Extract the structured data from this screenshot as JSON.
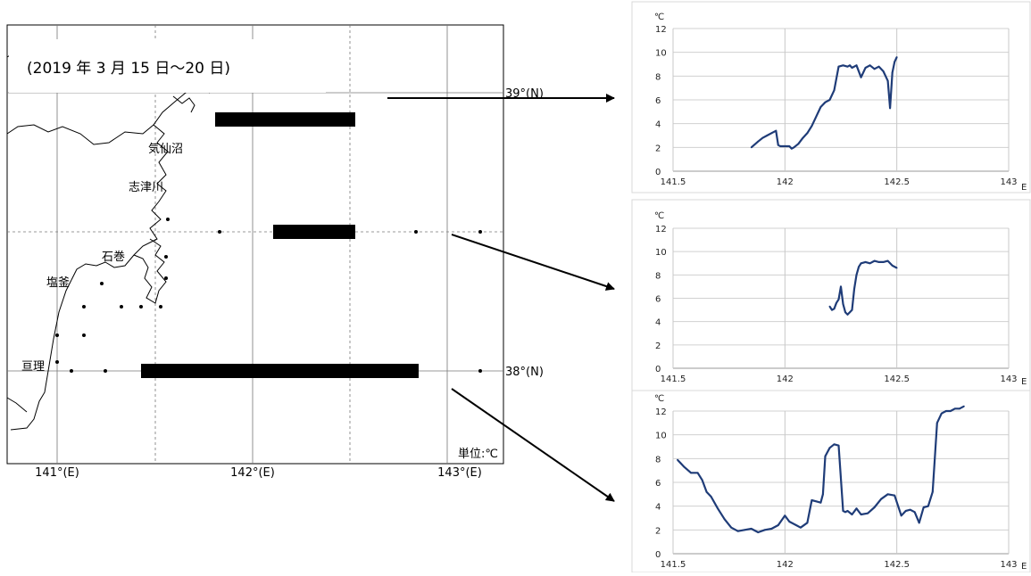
{
  "map": {
    "title": "(2019 年 3 月 15 日〜20 日)",
    "unit_label": "単位:℃",
    "lon_labels": [
      "141°(E)",
      "142°(E)",
      "143°(E)"
    ],
    "lat_labels": [
      "39°(N)",
      "38°(N)"
    ],
    "places": [
      "気仙沼",
      "志津川",
      "石巻",
      "塩釜",
      "亘理"
    ]
  },
  "chart_data": [
    {
      "type": "line",
      "unit": "℃",
      "x_axis_suffix": "E",
      "xlim": [
        141.5,
        143
      ],
      "x_ticks": [
        "141.5",
        "142",
        "142.5",
        "143"
      ],
      "ylim": [
        0,
        12
      ],
      "y_ticks": [
        "0",
        "2",
        "4",
        "6",
        "8",
        "10",
        "12"
      ],
      "grid": true,
      "color": "#1f3c78",
      "series": [
        {
          "x": [
            141.85,
            141.88,
            141.9,
            141.92,
            141.94,
            141.96,
            141.97,
            141.98,
            142.0,
            142.02,
            142.03,
            142.04,
            142.06,
            142.08,
            142.1,
            142.12,
            142.14,
            142.16,
            142.18,
            142.2,
            142.22,
            142.24,
            142.26,
            142.28,
            142.29,
            142.3,
            142.32,
            142.34,
            142.36,
            142.38,
            142.4,
            142.42,
            142.44,
            142.46,
            142.47,
            142.48,
            142.49,
            142.5
          ],
          "y": [
            2.0,
            2.5,
            2.8,
            3.0,
            3.2,
            3.4,
            2.2,
            2.1,
            2.1,
            2.1,
            1.9,
            2.0,
            2.3,
            2.8,
            3.2,
            3.8,
            4.6,
            5.4,
            5.8,
            6.0,
            6.8,
            8.8,
            8.9,
            8.8,
            8.9,
            8.7,
            8.9,
            7.9,
            8.7,
            8.9,
            8.6,
            8.8,
            8.4,
            7.6,
            5.3,
            8.3,
            9.2,
            9.6
          ]
        }
      ]
    },
    {
      "type": "line",
      "unit": "℃",
      "x_axis_suffix": "E",
      "xlim": [
        141.5,
        143
      ],
      "x_ticks": [
        "141.5",
        "142",
        "142.5",
        "143"
      ],
      "ylim": [
        0,
        12
      ],
      "y_ticks": [
        "0",
        "2",
        "4",
        "6",
        "8",
        "10",
        "12"
      ],
      "grid": true,
      "color": "#1f3c78",
      "series": [
        {
          "x": [
            142.2,
            142.21,
            142.22,
            142.23,
            142.24,
            142.25,
            142.26,
            142.27,
            142.28,
            142.29,
            142.3,
            142.31,
            142.32,
            142.33,
            142.34,
            142.36,
            142.38,
            142.4,
            142.42,
            142.44,
            142.46,
            142.48,
            142.5
          ],
          "y": [
            5.3,
            5.0,
            5.1,
            5.6,
            5.9,
            7.0,
            5.5,
            4.8,
            4.6,
            4.8,
            5.0,
            6.8,
            8.0,
            8.7,
            9.0,
            9.1,
            9.0,
            9.2,
            9.1,
            9.1,
            9.2,
            8.8,
            8.6
          ]
        }
      ]
    },
    {
      "type": "line",
      "unit": "℃",
      "x_axis_suffix": "E",
      "xlim": [
        141.5,
        143
      ],
      "x_ticks": [
        "141.5",
        "142",
        "142.5",
        "143"
      ],
      "ylim": [
        0,
        12
      ],
      "y_ticks": [
        "0",
        "2",
        "4",
        "6",
        "8",
        "10",
        "12"
      ],
      "grid": true,
      "color": "#1f3c78",
      "series": [
        {
          "x": [
            141.52,
            141.55,
            141.58,
            141.61,
            141.63,
            141.65,
            141.67,
            141.7,
            141.73,
            141.76,
            141.79,
            141.82,
            141.85,
            141.88,
            141.91,
            141.94,
            141.97,
            142.0,
            142.02,
            142.05,
            142.07,
            142.1,
            142.12,
            142.14,
            142.16,
            142.17,
            142.18,
            142.2,
            142.22,
            142.24,
            142.26,
            142.27,
            142.28,
            142.3,
            142.32,
            142.34,
            142.37,
            142.4,
            142.43,
            142.46,
            142.49,
            142.52,
            142.54,
            142.56,
            142.58,
            142.6,
            142.62,
            142.64,
            142.66,
            142.68,
            142.7,
            142.72,
            142.74,
            142.76,
            142.78,
            142.8
          ],
          "y": [
            7.9,
            7.3,
            6.8,
            6.8,
            6.2,
            5.2,
            4.8,
            3.8,
            2.9,
            2.2,
            1.9,
            2.0,
            2.1,
            1.8,
            2.0,
            2.1,
            2.4,
            3.2,
            2.7,
            2.4,
            2.2,
            2.6,
            4.5,
            4.4,
            4.3,
            5.0,
            8.2,
            8.9,
            9.2,
            9.1,
            3.6,
            3.5,
            3.6,
            3.3,
            3.8,
            3.3,
            3.4,
            3.9,
            4.6,
            5.0,
            4.9,
            3.2,
            3.6,
            3.7,
            3.5,
            2.6,
            3.9,
            4.0,
            5.2,
            11.0,
            11.8,
            12.0,
            12.0,
            12.2,
            12.2,
            12.4
          ]
        }
      ]
    }
  ]
}
